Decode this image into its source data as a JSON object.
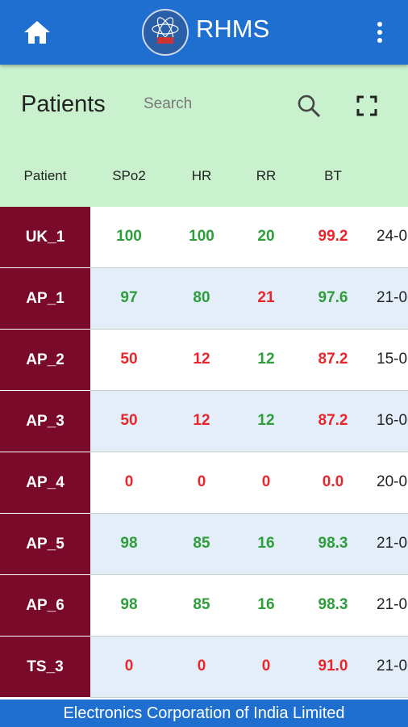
{
  "header": {
    "title": "RHMS"
  },
  "toolbar": {
    "title": "Patients",
    "search_placeholder": "Search"
  },
  "table": {
    "columns": [
      "Patient",
      "SPo2",
      "HR",
      "RR",
      "BT"
    ],
    "rows": [
      {
        "cells": [
          "UK_1",
          "100",
          "100",
          "20",
          "99.2",
          "24-0"
        ],
        "colors": [
          "#2e9e3a",
          "#2e9e3a",
          "#2e9e3a",
          "#e8262b"
        ]
      },
      {
        "cells": [
          "AP_1",
          "97",
          "80",
          "21",
          "97.6",
          "21-0"
        ],
        "colors": [
          "#2e9e3a",
          "#2e9e3a",
          "#e8262b",
          "#2e9e3a"
        ]
      },
      {
        "cells": [
          "AP_2",
          "50",
          "12",
          "12",
          "87.2",
          "15-0"
        ],
        "colors": [
          "#e8262b",
          "#e8262b",
          "#2e9e3a",
          "#e8262b"
        ]
      },
      {
        "cells": [
          "AP_3",
          "50",
          "12",
          "12",
          "87.2",
          "16-0"
        ],
        "colors": [
          "#e8262b",
          "#e8262b",
          "#2e9e3a",
          "#e8262b"
        ]
      },
      {
        "cells": [
          "AP_4",
          "0",
          "0",
          "0",
          "0.0",
          "20-0"
        ],
        "colors": [
          "#e8262b",
          "#e8262b",
          "#e8262b",
          "#e8262b"
        ]
      },
      {
        "cells": [
          "AP_5",
          "98",
          "85",
          "16",
          "98.3",
          "21-0"
        ],
        "colors": [
          "#2e9e3a",
          "#2e9e3a",
          "#2e9e3a",
          "#2e9e3a"
        ]
      },
      {
        "cells": [
          "AP_6",
          "98",
          "85",
          "16",
          "98.3",
          "21-0"
        ],
        "colors": [
          "#2e9e3a",
          "#2e9e3a",
          "#2e9e3a",
          "#2e9e3a"
        ]
      },
      {
        "cells": [
          "TS_3",
          "0",
          "0",
          "0",
          "91.0",
          "21-0"
        ],
        "colors": [
          "#e8262b",
          "#e8262b",
          "#e8262b",
          "#e8262b"
        ]
      }
    ]
  },
  "footer": {
    "text": "Electronics Corporation of India Limited"
  }
}
